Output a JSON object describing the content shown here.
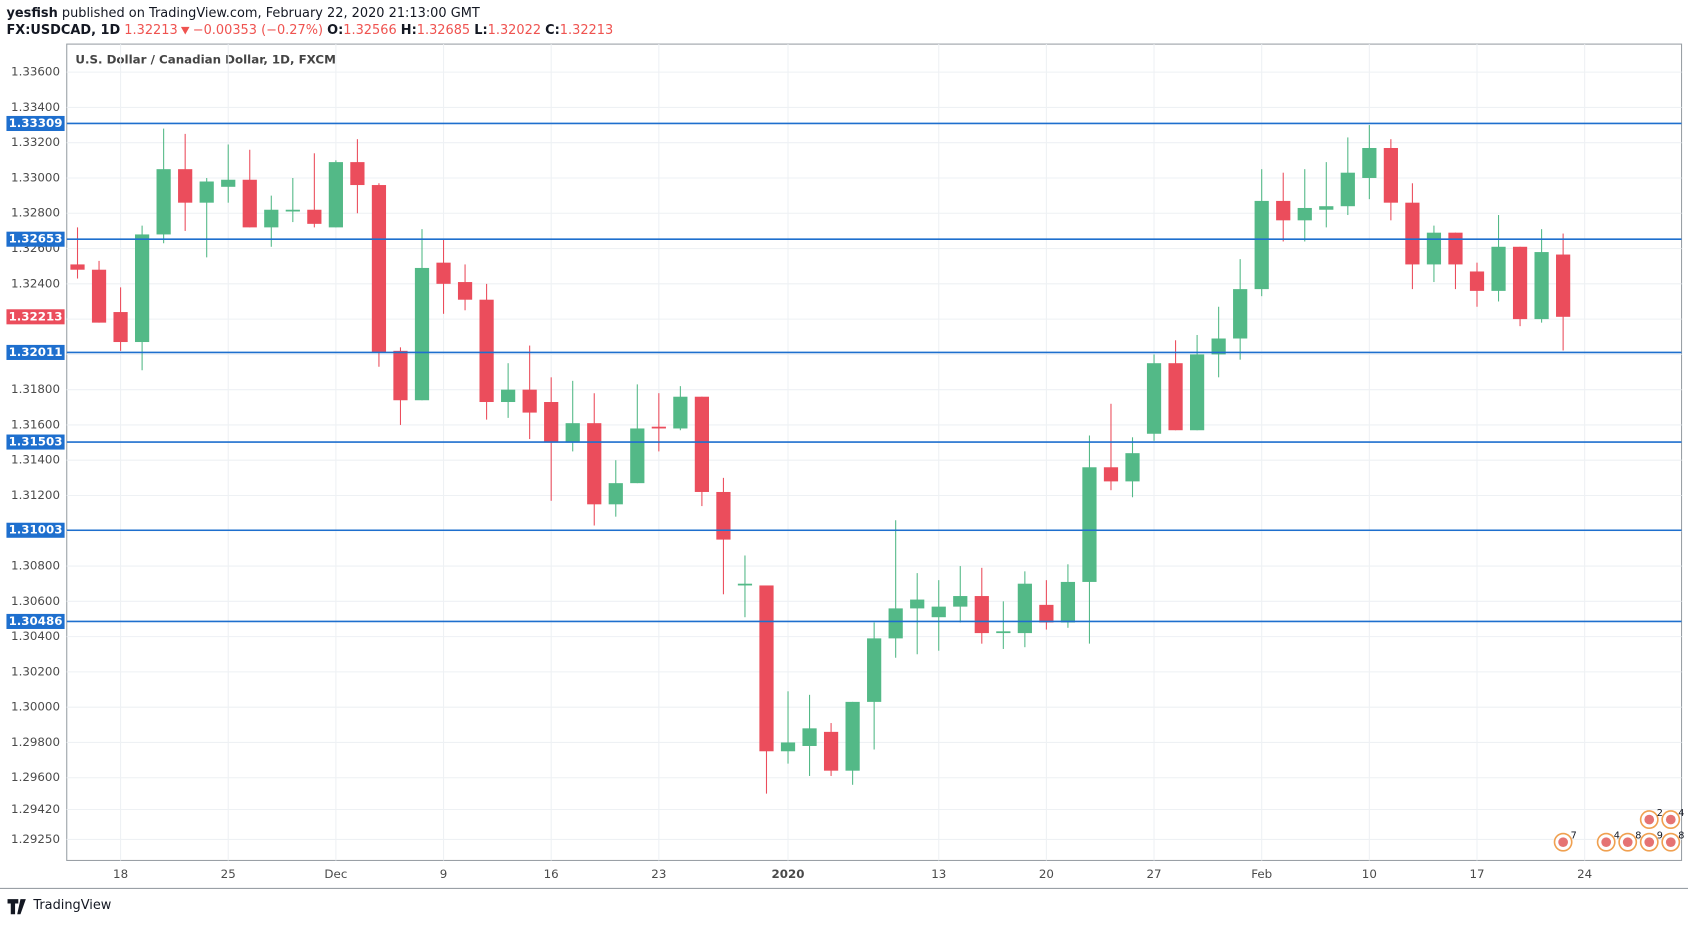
{
  "header": {
    "author": "yesfish",
    "byline": "published on TradingView.com, February 22, 2020 21:13:00 GMT",
    "symbol": "FX:USDCAD, 1D",
    "last": "1.32213",
    "change": "−0.00353 (−0.27%)",
    "ohlc": [
      {
        "key": "O:",
        "value": "1.32566"
      },
      {
        "key": "H:",
        "value": "1.32685"
      },
      {
        "key": "L:",
        "value": "1.32022"
      },
      {
        "key": "C:",
        "value": "1.32213"
      }
    ]
  },
  "chart_data": {
    "type": "candlestick",
    "title": "U.S. Dollar / Canadian Dollar, 1D, FXCM",
    "categories": [
      null,
      null,
      "18",
      null,
      null,
      null,
      null,
      "25",
      null,
      null,
      null,
      null,
      "Dec",
      null,
      null,
      null,
      null,
      "9",
      null,
      null,
      null,
      null,
      "16",
      null,
      null,
      null,
      null,
      "23",
      null,
      null,
      null,
      null,
      null,
      "2020",
      null,
      null,
      null,
      null,
      null,
      null,
      "13",
      null,
      null,
      null,
      null,
      "20",
      null,
      null,
      null,
      null,
      "27",
      null,
      null,
      null,
      null,
      "Feb",
      null,
      null,
      null,
      null,
      "10",
      null,
      null,
      null,
      null,
      "17",
      null,
      null,
      null,
      null,
      "24"
    ],
    "open": [
      1.3251,
      1.3248,
      1.3224,
      1.3207,
      1.3268,
      1.3305,
      1.3286,
      1.3295,
      1.3299,
      1.3272,
      1.3281,
      1.3282,
      1.3272,
      1.3309,
      1.3296,
      1.3202,
      1.3174,
      1.3252,
      1.3241,
      1.3231,
      1.3173,
      1.318,
      1.3173,
      1.315,
      1.3161,
      1.3115,
      1.3127,
      1.3159,
      1.3158,
      1.3176,
      1.3122,
      1.3069,
      1.3069,
      1.2975,
      1.2978,
      1.2986,
      1.2964,
      1.3003,
      1.3039,
      1.3056,
      1.3051,
      1.3057,
      1.3063,
      1.3042,
      1.3042,
      1.3058,
      1.3048,
      1.3071,
      1.3136,
      1.3128,
      1.3155,
      1.3195,
      1.3157,
      1.32,
      1.3209,
      1.3237,
      1.3287,
      1.3276,
      1.3282,
      1.3284,
      1.33,
      1.3317,
      1.3286,
      1.3251,
      1.3269,
      1.3247,
      1.3236,
      1.3261,
      1.322,
      1.32566,
      null
    ],
    "high": [
      1.3272,
      1.3253,
      1.3238,
      1.3273,
      1.3328,
      1.3325,
      1.33,
      1.3319,
      1.3316,
      1.329,
      1.33,
      1.3314,
      1.331,
      1.3322,
      1.3297,
      1.3204,
      1.3271,
      1.3265,
      1.3251,
      1.324,
      1.3195,
      1.3205,
      1.3187,
      1.3185,
      1.3178,
      1.314,
      1.3183,
      1.3178,
      1.3182,
      1.3176,
      1.313,
      1.3086,
      1.3069,
      1.3009,
      1.3007,
      1.2991,
      1.3003,
      1.3048,
      1.3106,
      1.3076,
      1.3072,
      1.308,
      1.3079,
      1.306,
      1.3077,
      1.3072,
      1.3081,
      1.3154,
      1.3172,
      1.3153,
      1.32,
      1.3208,
      1.3211,
      1.3227,
      1.3254,
      1.3305,
      1.3303,
      1.3305,
      1.3309,
      1.3323,
      1.333,
      1.3322,
      1.3297,
      1.3273,
      1.3269,
      1.3252,
      1.3279,
      1.3261,
      1.3271,
      1.32685,
      null
    ],
    "low": [
      1.3243,
      1.3218,
      1.3202,
      1.3191,
      1.3263,
      1.327,
      1.3255,
      1.3286,
      1.3272,
      1.3261,
      1.3275,
      1.3272,
      1.3272,
      1.328,
      1.3193,
      1.316,
      1.3174,
      1.3223,
      1.3225,
      1.3163,
      1.3164,
      1.3152,
      1.3117,
      1.3145,
      1.3103,
      1.3108,
      1.3127,
      1.3145,
      1.3157,
      1.3114,
      1.3064,
      1.3051,
      1.2951,
      1.2968,
      1.2961,
      1.2961,
      1.2956,
      1.2976,
      1.3028,
      1.303,
      1.3032,
      1.3048,
      1.3036,
      1.3033,
      1.3034,
      1.3044,
      1.3045,
      1.3036,
      1.3123,
      1.3119,
      1.3151,
      1.3157,
      1.3157,
      1.3187,
      1.3197,
      1.3233,
      1.3264,
      1.3264,
      1.3272,
      1.3279,
      1.3288,
      1.3276,
      1.3237,
      1.3241,
      1.3237,
      1.3227,
      1.323,
      1.3216,
      1.3218,
      1.32022,
      null
    ],
    "close": [
      1.3248,
      1.3218,
      1.3207,
      1.3268,
      1.3305,
      1.3286,
      1.3298,
      1.3299,
      1.3272,
      1.3282,
      1.3282,
      1.3274,
      1.3309,
      1.3296,
      1.3201,
      1.3174,
      1.3249,
      1.324,
      1.3231,
      1.3173,
      1.318,
      1.3167,
      1.315,
      1.3161,
      1.3115,
      1.3127,
      1.3158,
      1.3158,
      1.3176,
      1.3122,
      1.3095,
      1.307,
      1.2975,
      1.298,
      1.2988,
      1.2964,
      1.3003,
      1.3039,
      1.3056,
      1.3061,
      1.3057,
      1.3063,
      1.3042,
      1.3043,
      1.307,
      1.3048,
      1.3071,
      1.3136,
      1.3128,
      1.3144,
      1.3195,
      1.3157,
      1.32,
      1.3209,
      1.3237,
      1.3287,
      1.3276,
      1.3283,
      1.3284,
      1.3303,
      1.3317,
      1.3286,
      1.3251,
      1.3269,
      1.3251,
      1.3236,
      1.3261,
      1.322,
      1.3258,
      1.32213,
      null
    ],
    "up_color": "#53b987",
    "down_color": "#eb4d5c",
    "level_color": "#1e6fce",
    "levels": [
      1.33309,
      1.32653,
      1.32011,
      1.31503,
      1.31003,
      1.30486
    ],
    "last_price": 1.32213,
    "ylim": [
      1.29131,
      1.33759
    ],
    "yticks": [
      {
        "value": 1.336,
        "label": "1.33600"
      },
      {
        "value": 1.334,
        "label": "1.33400"
      },
      {
        "value": 1.332,
        "label": "1.33200"
      },
      {
        "value": 1.33,
        "label": "1.33000"
      },
      {
        "value": 1.328,
        "label": "1.32800"
      },
      {
        "value": 1.326,
        "label": "1.32600"
      },
      {
        "value": 1.324,
        "label": "1.32400"
      },
      {
        "value": 1.322,
        "label": "1.32200"
      },
      {
        "value": 1.32,
        "label": "1.32000"
      },
      {
        "value": 1.318,
        "label": "1.31800"
      },
      {
        "value": 1.316,
        "label": "1.31600"
      },
      {
        "value": 1.314,
        "label": "1.31400"
      },
      {
        "value": 1.312,
        "label": "1.31200"
      },
      {
        "value": 1.31,
        "label": "1.31000"
      },
      {
        "value": 1.308,
        "label": "1.30800"
      },
      {
        "value": 1.306,
        "label": "1.30600"
      },
      {
        "value": 1.304,
        "label": "1.30400"
      },
      {
        "value": 1.302,
        "label": "1.30200"
      },
      {
        "value": 1.3,
        "label": "1.30000"
      },
      {
        "value": 1.298,
        "label": "1.29800"
      },
      {
        "value": 1.296,
        "label": "1.29600"
      },
      {
        "value": 1.2942,
        "label": "1.29420"
      },
      {
        "value": 1.2925,
        "label": "1.29250"
      }
    ],
    "grid": true,
    "events": [
      "7",
      "4",
      "8",
      "9",
      "8",
      "2",
      "4"
    ]
  },
  "footer": {
    "brand": "TradingView"
  }
}
